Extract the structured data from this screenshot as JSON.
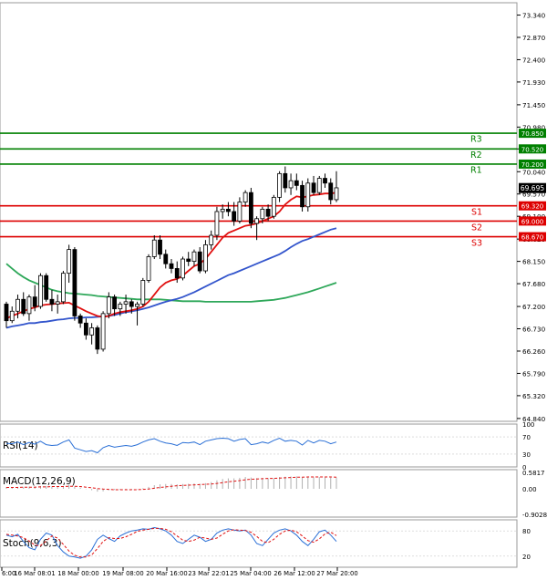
{
  "chart_data": {
    "type": "candlestick",
    "price_axis": {
      "ticks": [
        "73.340",
        "72.870",
        "72.400",
        "71.930",
        "71.450",
        "70.980",
        "70.520",
        "70.040",
        "69.570",
        "69.100",
        "68.620",
        "68.150",
        "67.680",
        "67.200",
        "66.730",
        "66.260",
        "65.790",
        "65.320",
        "64.840"
      ],
      "range": [
        64.78,
        73.6
      ]
    },
    "x_ticks": [
      "6:00",
      "16 Mar 08:01",
      "18 Mar 00:00",
      "19 Mar 08:00",
      "20 Mar 16:00",
      "23 Mar 22:01",
      "25 Mar 04:00",
      "26 Mar 12:00",
      "27 Mar 20:00"
    ],
    "current_price": "69.695",
    "levels": [
      {
        "name": "R3",
        "value": 70.85,
        "label": "70.850",
        "color": "#008000"
      },
      {
        "name": "R2",
        "value": 70.52,
        "label": "70.520",
        "color": "#008000"
      },
      {
        "name": "R1",
        "value": 70.2,
        "label": "70.200",
        "color": "#008000"
      },
      {
        "name": "S1",
        "value": 69.32,
        "label": "69.320",
        "color": "#dd0000"
      },
      {
        "name": "S2",
        "value": 69.0,
        "label": "69.000",
        "color": "#dd0000"
      },
      {
        "name": "S3",
        "value": 68.67,
        "label": "68.670",
        "color": "#dd0000"
      }
    ],
    "candles": [
      [
        67.25,
        67.3,
        66.75,
        66.9
      ],
      [
        66.9,
        67.2,
        66.85,
        67.1
      ],
      [
        67.1,
        67.45,
        66.95,
        67.35
      ],
      [
        67.35,
        67.5,
        67.0,
        67.05
      ],
      [
        67.05,
        67.45,
        66.9,
        67.4
      ],
      [
        67.4,
        67.65,
        67.1,
        67.2
      ],
      [
        67.2,
        67.9,
        67.15,
        67.85
      ],
      [
        67.85,
        67.9,
        67.3,
        67.35
      ],
      [
        67.35,
        67.55,
        67.1,
        67.25
      ],
      [
        67.25,
        67.45,
        67.05,
        67.3
      ],
      [
        67.3,
        67.95,
        67.25,
        67.9
      ],
      [
        67.9,
        68.5,
        67.7,
        68.4
      ],
      [
        68.4,
        68.45,
        66.9,
        67.0
      ],
      [
        67.0,
        67.05,
        66.75,
        66.85
      ],
      [
        66.85,
        66.95,
        66.5,
        66.6
      ],
      [
        66.6,
        66.85,
        66.4,
        66.75
      ],
      [
        66.75,
        66.8,
        66.2,
        66.3
      ],
      [
        66.3,
        67.1,
        66.25,
        67.05
      ],
      [
        67.05,
        67.5,
        66.95,
        67.4
      ],
      [
        67.4,
        67.45,
        67.0,
        67.15
      ],
      [
        67.15,
        67.3,
        67.0,
        67.25
      ],
      [
        67.25,
        67.45,
        67.05,
        67.3
      ],
      [
        67.3,
        67.35,
        67.05,
        67.2
      ],
      [
        67.2,
        67.3,
        66.8,
        67.25
      ],
      [
        67.25,
        67.8,
        67.2,
        67.75
      ],
      [
        67.75,
        68.3,
        67.7,
        68.25
      ],
      [
        68.25,
        68.7,
        68.2,
        68.6
      ],
      [
        68.6,
        68.7,
        68.2,
        68.3
      ],
      [
        68.3,
        68.4,
        68.0,
        68.1
      ],
      [
        68.1,
        68.2,
        67.9,
        68.0
      ],
      [
        68.0,
        68.15,
        67.7,
        67.8
      ],
      [
        67.8,
        68.25,
        67.75,
        68.2
      ],
      [
        68.2,
        68.35,
        68.05,
        68.15
      ],
      [
        68.15,
        68.4,
        68.05,
        68.35
      ],
      [
        68.35,
        68.45,
        67.9,
        67.95
      ],
      [
        67.95,
        68.6,
        67.9,
        68.5
      ],
      [
        68.5,
        68.8,
        68.4,
        68.7
      ],
      [
        68.7,
        69.3,
        68.6,
        69.2
      ],
      [
        69.2,
        69.35,
        69.05,
        69.25
      ],
      [
        69.25,
        69.4,
        69.1,
        69.2
      ],
      [
        69.2,
        69.4,
        68.9,
        69.0
      ],
      [
        69.0,
        69.5,
        68.95,
        69.4
      ],
      [
        69.4,
        69.65,
        69.3,
        69.6
      ],
      [
        69.6,
        69.7,
        68.85,
        68.95
      ],
      [
        68.95,
        69.1,
        68.6,
        69.05
      ],
      [
        69.05,
        69.3,
        68.95,
        69.25
      ],
      [
        69.25,
        69.35,
        69.0,
        69.1
      ],
      [
        69.1,
        69.55,
        69.05,
        69.5
      ],
      [
        69.5,
        70.05,
        69.4,
        70.0
      ],
      [
        70.0,
        70.15,
        69.6,
        69.7
      ],
      [
        69.7,
        70.0,
        69.55,
        69.85
      ],
      [
        69.85,
        70.0,
        69.65,
        69.75
      ],
      [
        69.75,
        69.85,
        69.2,
        69.3
      ],
      [
        69.3,
        69.9,
        69.2,
        69.8
      ],
      [
        69.8,
        69.95,
        69.55,
        69.6
      ],
      [
        69.6,
        69.95,
        69.55,
        69.9
      ],
      [
        69.9,
        70.0,
        69.7,
        69.8
      ],
      [
        69.8,
        69.9,
        69.35,
        69.45
      ],
      [
        69.45,
        70.05,
        69.4,
        69.7
      ]
    ],
    "ma_fast": [
      66.95,
      67.0,
      67.05,
      67.1,
      67.15,
      67.18,
      67.22,
      67.24,
      67.25,
      67.26,
      67.27,
      67.28,
      67.22,
      67.16,
      67.1,
      67.05,
      67.0,
      66.98,
      67.0,
      67.05,
      67.08,
      67.1,
      67.12,
      67.15,
      67.2,
      67.3,
      67.45,
      67.6,
      67.7,
      67.75,
      67.78,
      67.85,
      67.95,
      68.05,
      68.1,
      68.2,
      68.35,
      68.5,
      68.65,
      68.75,
      68.8,
      68.85,
      68.9,
      68.92,
      68.95,
      69.0,
      69.05,
      69.1,
      69.2,
      69.35,
      69.45,
      69.52,
      69.5,
      69.52,
      69.55,
      69.56,
      69.58,
      69.58,
      69.6
    ],
    "ma_mid": [
      66.75,
      66.78,
      66.8,
      66.82,
      66.85,
      66.85,
      66.87,
      66.88,
      66.9,
      66.92,
      66.93,
      66.95,
      66.96,
      66.96,
      66.97,
      66.97,
      66.98,
      66.99,
      67.0,
      67.02,
      67.05,
      67.08,
      67.1,
      67.12,
      67.15,
      67.18,
      67.22,
      67.26,
      67.3,
      67.33,
      67.36,
      67.4,
      67.45,
      67.5,
      67.56,
      67.62,
      67.68,
      67.74,
      67.8,
      67.86,
      67.9,
      67.95,
      68.0,
      68.05,
      68.1,
      68.15,
      68.2,
      68.25,
      68.3,
      68.37,
      68.45,
      68.52,
      68.58,
      68.62,
      68.67,
      68.72,
      68.77,
      68.82,
      68.85
    ],
    "ma_slow": [
      68.1,
      68.0,
      67.9,
      67.82,
      67.75,
      67.7,
      67.65,
      67.6,
      67.55,
      67.52,
      67.5,
      67.48,
      67.47,
      67.46,
      67.45,
      67.44,
      67.42,
      67.41,
      67.4,
      67.39,
      67.38,
      67.37,
      67.36,
      67.35,
      67.35,
      67.35,
      67.35,
      67.35,
      67.34,
      67.33,
      67.32,
      67.31,
      67.31,
      67.31,
      67.31,
      67.3,
      67.3,
      67.3,
      67.3,
      67.3,
      67.3,
      67.3,
      67.3,
      67.3,
      67.31,
      67.32,
      67.33,
      67.34,
      67.36,
      67.38,
      67.41,
      67.44,
      67.47,
      67.5,
      67.54,
      67.58,
      67.62,
      67.66,
      67.7
    ],
    "rsi": {
      "label": "RSI(14)",
      "ticks": [
        "100",
        "70",
        "30",
        "0"
      ],
      "values": [
        55,
        54,
        58,
        52,
        57,
        53,
        60,
        52,
        50,
        51,
        58,
        63,
        44,
        40,
        36,
        38,
        33,
        45,
        50,
        46,
        48,
        50,
        48,
        52,
        58,
        63,
        66,
        60,
        56,
        54,
        50,
        57,
        56,
        58,
        52,
        60,
        63,
        66,
        67,
        66,
        60,
        64,
        66,
        52,
        54,
        58,
        55,
        62,
        67,
        60,
        62,
        60,
        51,
        62,
        56,
        62,
        60,
        54,
        58
      ]
    },
    "macd": {
      "label": "MACD(12,26,9)",
      "ticks": [
        "0.5817",
        "0.00",
        "-0.9028"
      ],
      "hist": [
        0.06,
        0.06,
        0.07,
        0.07,
        0.08,
        0.08,
        0.1,
        0.1,
        0.09,
        0.09,
        0.1,
        0.14,
        0.09,
        0.04,
        -0.01,
        -0.05,
        -0.1,
        -0.09,
        -0.05,
        -0.04,
        -0.03,
        -0.02,
        -0.02,
        -0.01,
        0.02,
        0.07,
        0.13,
        0.16,
        0.17,
        0.17,
        0.16,
        0.17,
        0.18,
        0.19,
        0.18,
        0.2,
        0.24,
        0.3,
        0.35,
        0.37,
        0.37,
        0.39,
        0.42,
        0.4,
        0.38,
        0.38,
        0.37,
        0.38,
        0.42,
        0.43,
        0.44,
        0.44,
        0.41,
        0.42,
        0.41,
        0.42,
        0.42,
        0.4,
        0.4
      ],
      "signal": [
        0.05,
        0.05,
        0.05,
        0.06,
        0.06,
        0.06,
        0.07,
        0.07,
        0.08,
        0.08,
        0.08,
        0.09,
        0.09,
        0.08,
        0.06,
        0.04,
        0.01,
        -0.01,
        -0.02,
        -0.03,
        -0.03,
        -0.03,
        -0.03,
        -0.03,
        -0.02,
        -0.01,
        0.02,
        0.05,
        0.07,
        0.09,
        0.11,
        0.12,
        0.13,
        0.14,
        0.15,
        0.16,
        0.17,
        0.19,
        0.22,
        0.25,
        0.27,
        0.29,
        0.32,
        0.34,
        0.35,
        0.36,
        0.37,
        0.37,
        0.38,
        0.39,
        0.4,
        0.41,
        0.41,
        0.42,
        0.42,
        0.42,
        0.42,
        0.42,
        0.41
      ]
    },
    "stoch": {
      "label": "Stoch(9,6,3)",
      "ticks": [
        "80",
        "20"
      ],
      "k": [
        70,
        66,
        72,
        55,
        40,
        35,
        60,
        75,
        70,
        45,
        30,
        20,
        18,
        15,
        20,
        35,
        60,
        70,
        62,
        55,
        68,
        75,
        80,
        82,
        85,
        84,
        88,
        85,
        80,
        70,
        55,
        50,
        60,
        70,
        65,
        55,
        60,
        75,
        82,
        85,
        82,
        80,
        82,
        70,
        50,
        45,
        60,
        75,
        82,
        85,
        80,
        70,
        55,
        45,
        60,
        78,
        82,
        70,
        55
      ],
      "d": [
        72,
        70,
        68,
        64,
        56,
        46,
        45,
        56,
        68,
        63,
        48,
        32,
        22,
        18,
        18,
        23,
        38,
        55,
        64,
        62,
        62,
        66,
        72,
        79,
        82,
        84,
        86,
        86,
        84,
        78,
        68,
        58,
        55,
        58,
        65,
        63,
        60,
        63,
        72,
        80,
        83,
        82,
        81,
        77,
        67,
        55,
        52,
        60,
        72,
        80,
        82,
        78,
        68,
        57,
        53,
        61,
        73,
        77,
        69
      ]
    }
  }
}
